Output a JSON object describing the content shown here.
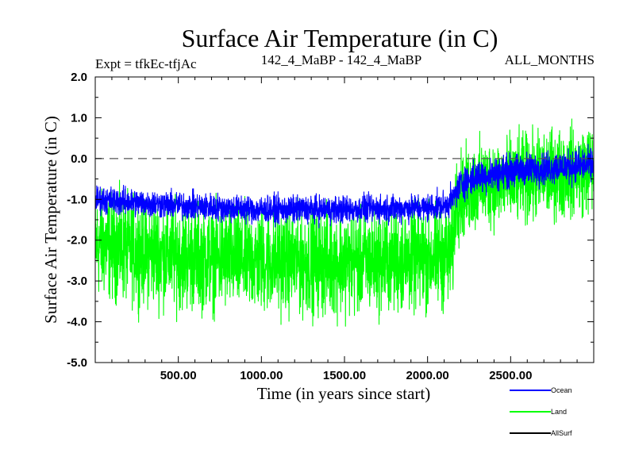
{
  "chart_data": {
    "type": "line",
    "title": "Surface Air Temperature (in C)",
    "subtitle_left": "Expt = tfkEc-tfjAc",
    "subtitle_center": "142_4_MaBP - 142_4_MaBP",
    "subtitle_right": "ALL_MONTHS",
    "xlabel": "Time (in years since start)",
    "ylabel": "Surface Air Temperature (in C)",
    "xlim": [
      0,
      3000
    ],
    "ylim": [
      -5.0,
      2.0
    ],
    "x_ticks": [
      500,
      1000,
      1500,
      2000,
      2500
    ],
    "x_tick_labels": [
      "500.00",
      "1000.00",
      "1500.00",
      "2000.00",
      "2500.00"
    ],
    "y_ticks": [
      2.0,
      1.0,
      0.0,
      -1.0,
      -2.0,
      -3.0,
      -4.0,
      -5.0
    ],
    "y_tick_labels": [
      "2.0",
      "1.0",
      "0.0",
      "-1.0",
      "-2.0",
      "-3.0",
      "-4.0",
      "-5.0"
    ],
    "reference_line": {
      "y": 0.0,
      "style": "dashed",
      "color": "#555555"
    },
    "grid": false,
    "legend_position": "bottom-right, below plot",
    "series": [
      {
        "name": "Ocean",
        "color": "#0000ff",
        "mean_by_year": [
          [
            0,
            -1.0
          ],
          [
            500,
            -1.15
          ],
          [
            1000,
            -1.25
          ],
          [
            1500,
            -1.25
          ],
          [
            2000,
            -1.2
          ],
          [
            2100,
            -1.15
          ],
          [
            2150,
            -1.0
          ],
          [
            2200,
            -0.6
          ],
          [
            2300,
            -0.45
          ],
          [
            2500,
            -0.3
          ],
          [
            2800,
            -0.2
          ],
          [
            3000,
            -0.15
          ]
        ],
        "amplitude_by_year": [
          [
            0,
            0.25
          ],
          [
            2150,
            0.25
          ],
          [
            2200,
            0.3
          ],
          [
            3000,
            0.3
          ]
        ],
        "range_min_max": [
          -1.85,
          0.35
        ]
      },
      {
        "name": "Land",
        "color": "#00ff00",
        "mean_by_year": [
          [
            0,
            -2.1
          ],
          [
            500,
            -2.4
          ],
          [
            1000,
            -2.5
          ],
          [
            1500,
            -2.55
          ],
          [
            2000,
            -2.45
          ],
          [
            2150,
            -2.35
          ],
          [
            2170,
            -1.0
          ],
          [
            2300,
            -0.65
          ],
          [
            2500,
            -0.55
          ],
          [
            2800,
            -0.35
          ],
          [
            3000,
            -0.25
          ]
        ],
        "amplitude_by_year": [
          [
            0,
            0.95
          ],
          [
            2150,
            0.95
          ],
          [
            2170,
            0.8
          ],
          [
            3000,
            0.8
          ]
        ],
        "range_min_max": [
          -4.7,
          1.75
        ]
      },
      {
        "name": "AllSurf",
        "color": "#000000",
        "mean_by_year": [],
        "amplitude_by_year": [],
        "range_min_max": []
      }
    ]
  }
}
